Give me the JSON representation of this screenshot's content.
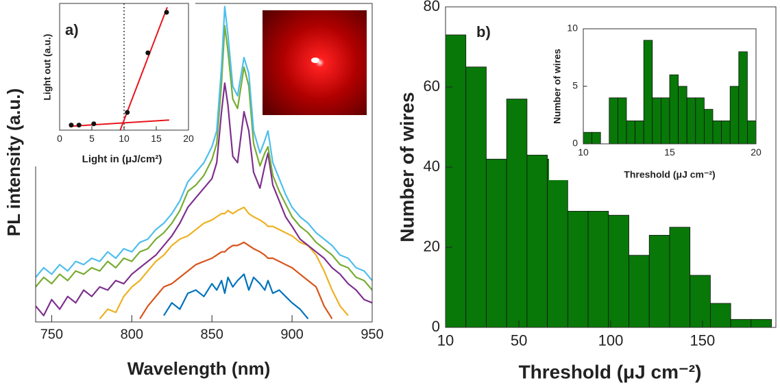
{
  "chart_data": [
    {
      "type": "line",
      "label": "a)",
      "xlabel": "Wavelength (nm)",
      "ylabel": "PL intensity (a.u.)",
      "xlim": [
        740,
        950
      ],
      "ylim": [
        0,
        1
      ],
      "xticks": [
        750,
        800,
        850,
        900,
        950
      ],
      "x": [
        740,
        745,
        750,
        755,
        760,
        765,
        770,
        775,
        780,
        785,
        790,
        795,
        800,
        805,
        810,
        815,
        820,
        825,
        830,
        835,
        840,
        845,
        850,
        853,
        856,
        858,
        860,
        863,
        866,
        870,
        873,
        876,
        880,
        883,
        885,
        888,
        892,
        896,
        900,
        905,
        910,
        915,
        920,
        925,
        930,
        935,
        940,
        945,
        950
      ],
      "series": [
        {
          "color": "#0072bd",
          "values": [
            null,
            null,
            null,
            null,
            null,
            null,
            null,
            null,
            null,
            null,
            null,
            null,
            null,
            null,
            null,
            null,
            0.02,
            0.06,
            0.04,
            0.09,
            0.1,
            0.08,
            0.12,
            0.1,
            0.13,
            0.09,
            0.14,
            0.11,
            0.13,
            0.15,
            0.1,
            0.14,
            0.12,
            0.1,
            0.13,
            0.09,
            0.1,
            0.08,
            0.06,
            0.04,
            0.01,
            null,
            null,
            null,
            null,
            null,
            null,
            null,
            null
          ]
        },
        {
          "color": "#d95319",
          "values": [
            null,
            null,
            null,
            null,
            null,
            null,
            null,
            null,
            null,
            null,
            null,
            null,
            null,
            0.01,
            0.05,
            0.08,
            0.11,
            0.12,
            0.14,
            0.16,
            0.18,
            0.19,
            0.2,
            0.21,
            0.22,
            0.22,
            0.23,
            0.24,
            0.24,
            0.25,
            0.24,
            0.23,
            0.22,
            0.21,
            0.2,
            0.2,
            0.19,
            0.18,
            0.17,
            0.15,
            0.13,
            0.11,
            0.05,
            0.01,
            null,
            null,
            null,
            null,
            null
          ]
        },
        {
          "color": "#edb120",
          "values": [
            null,
            null,
            null,
            null,
            null,
            null,
            null,
            null,
            0.01,
            0.04,
            0.03,
            0.08,
            0.11,
            0.13,
            0.16,
            0.19,
            0.21,
            0.24,
            0.26,
            0.27,
            0.29,
            0.31,
            0.32,
            0.33,
            0.34,
            0.34,
            0.35,
            0.34,
            0.35,
            0.36,
            0.34,
            0.33,
            0.32,
            0.31,
            0.3,
            0.3,
            0.29,
            0.28,
            0.27,
            0.25,
            0.24,
            0.21,
            0.16,
            0.1,
            0.05,
            0.02,
            null,
            null,
            null
          ]
        },
        {
          "color": "#7e2f8e",
          "values": [
            0.05,
            0.02,
            0.07,
            0.04,
            0.08,
            0.06,
            0.1,
            0.08,
            0.11,
            0.1,
            0.13,
            0.12,
            0.15,
            0.17,
            0.19,
            0.21,
            0.24,
            0.27,
            0.31,
            0.36,
            0.39,
            0.42,
            0.45,
            0.5,
            0.66,
            0.75,
            0.68,
            0.52,
            0.5,
            0.66,
            0.6,
            0.47,
            0.42,
            0.49,
            0.53,
            0.43,
            0.38,
            0.33,
            0.3,
            0.26,
            0.24,
            0.22,
            0.2,
            0.17,
            0.15,
            0.12,
            0.1,
            0.07,
            0.06
          ]
        },
        {
          "color": "#77ac30",
          "values": [
            0.11,
            0.14,
            0.12,
            0.15,
            0.13,
            0.16,
            0.15,
            0.17,
            0.16,
            0.19,
            0.17,
            0.2,
            0.19,
            0.22,
            0.23,
            0.26,
            0.28,
            0.31,
            0.35,
            0.41,
            0.43,
            0.46,
            0.51,
            0.56,
            0.75,
            0.93,
            0.85,
            0.7,
            0.67,
            0.8,
            0.74,
            0.56,
            0.49,
            0.53,
            0.55,
            0.46,
            0.41,
            0.37,
            0.33,
            0.3,
            0.28,
            0.25,
            0.23,
            0.21,
            0.18,
            0.17,
            0.14,
            0.13,
            0.1
          ]
        },
        {
          "color": "#4dbeee",
          "values": [
            0.14,
            0.17,
            0.15,
            0.18,
            0.16,
            0.19,
            0.18,
            0.2,
            0.19,
            0.22,
            0.2,
            0.23,
            0.22,
            0.25,
            0.26,
            0.29,
            0.31,
            0.34,
            0.38,
            0.44,
            0.47,
            0.5,
            0.55,
            0.6,
            0.8,
            0.99,
            0.9,
            0.74,
            0.71,
            0.83,
            0.78,
            0.6,
            0.53,
            0.57,
            0.6,
            0.5,
            0.45,
            0.4,
            0.36,
            0.33,
            0.31,
            0.28,
            0.26,
            0.24,
            0.21,
            0.2,
            0.17,
            0.16,
            0.13
          ]
        }
      ]
    },
    {
      "type": "scatter",
      "xlabel": "Light in (μJ/cm²)",
      "ylabel": "Light out (a.u.)",
      "xlim": [
        0,
        20
      ],
      "ylim": [
        0,
        1
      ],
      "xticks": [
        0,
        5,
        10,
        15,
        20
      ],
      "x": [
        1.8,
        3,
        5.3,
        10.5,
        13.7,
        16.6
      ],
      "values": [
        0.04,
        0.04,
        0.05,
        0.14,
        0.61,
        0.93
      ],
      "color": "#111111",
      "fits": [
        {
          "color": "#e8141b",
          "x": [
            9.4,
            16.7
          ],
          "values": [
            0,
            0.97
          ]
        },
        {
          "color": "#e8141b",
          "x": [
            1.5,
            17
          ],
          "values": [
            0.03,
            0.08
          ]
        }
      ],
      "vline": 10
    },
    {
      "type": "histogram",
      "label": "b)",
      "xlabel": "Threshold (μJ cm⁻²)",
      "ylabel": "Number of wires",
      "xlim": [
        10,
        190
      ],
      "ylim": [
        0,
        80
      ],
      "xticks": [
        10,
        50,
        100,
        150
      ],
      "yticks": [
        0,
        20,
        40,
        60,
        80
      ],
      "color": "#087808",
      "bins": [
        10,
        21.1,
        32.2,
        43.3,
        54.4,
        65.5,
        76.6,
        87.7,
        98.8,
        109.9,
        121,
        132.1,
        143.2,
        154.3,
        165.4,
        176.5,
        187.6
      ],
      "values": [
        73,
        65,
        42,
        57,
        43,
        42,
        29,
        29,
        28,
        18,
        23,
        25,
        13,
        6,
        2,
        2
      ]
    },
    {
      "type": "histogram",
      "xlabel": "Threshold (μJ cm⁻²)",
      "ylabel": "Number of wires",
      "xlim": [
        10,
        20
      ],
      "ylim": [
        0,
        10
      ],
      "xticks": [
        10,
        15,
        20
      ],
      "yticks": [
        0,
        5,
        10
      ],
      "color": "#087808",
      "bins": [
        10,
        10.5,
        11,
        11.5,
        12,
        12.5,
        13,
        13.5,
        14,
        14.5,
        15,
        15.5,
        16,
        16.5,
        17,
        17.5,
        18,
        18.5,
        19,
        19.5,
        20
      ],
      "values": [
        1,
        1,
        0,
        4,
        4,
        2,
        2,
        9,
        4,
        4,
        6,
        5,
        4,
        4,
        3,
        2,
        2,
        5,
        8,
        2
      ]
    }
  ]
}
